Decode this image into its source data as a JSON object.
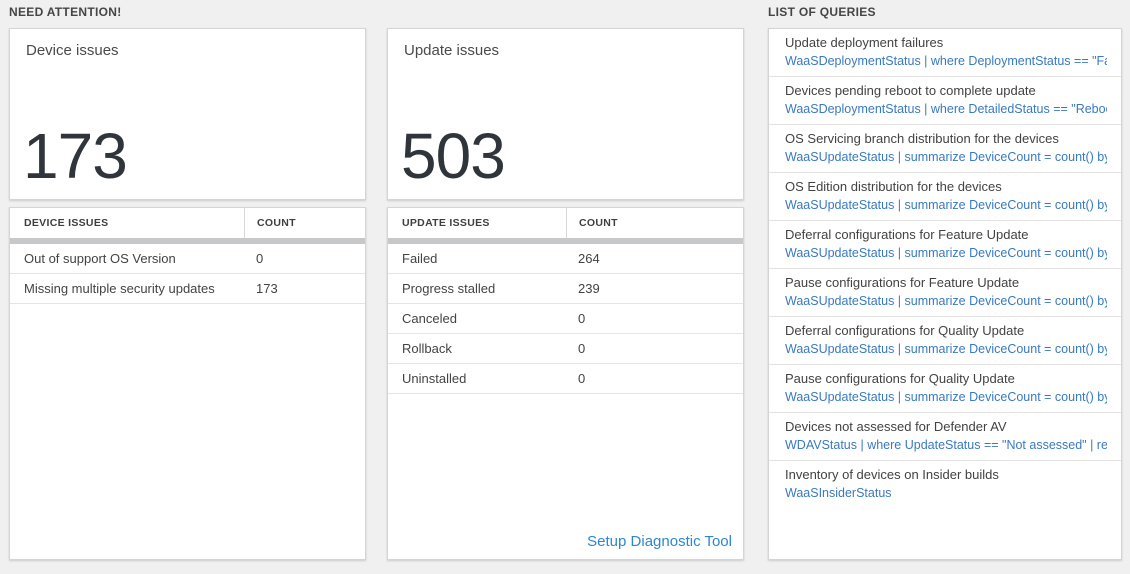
{
  "labels": {
    "need_attention": "NEED ATTENTION!",
    "list_of_queries": "LIST OF QUERIES"
  },
  "colors": {
    "query_link_blue": "#3a79c2",
    "footer_link_blue": "#2e86d1",
    "big_number_color": "#2f353b",
    "page_background": "#f0f0f1"
  },
  "cards": {
    "device": {
      "title": "Device issues",
      "value": "173"
    },
    "update": {
      "title": "Update issues",
      "value": "503"
    }
  },
  "tables": {
    "device": {
      "col1": "DEVICE ISSUES",
      "col2": "COUNT",
      "rows": [
        {
          "label": "Out of support OS Version",
          "count": "0"
        },
        {
          "label": "Missing multiple security updates",
          "count": "173"
        }
      ]
    },
    "update": {
      "col1": "UPDATE ISSUES",
      "col2": "COUNT",
      "rows": [
        {
          "label": "Failed",
          "count": "264"
        },
        {
          "label": "Progress stalled",
          "count": "239"
        },
        {
          "label": "Canceled",
          "count": "0"
        },
        {
          "label": "Rollback",
          "count": "0"
        },
        {
          "label": "Uninstalled",
          "count": "0"
        }
      ],
      "footer_link": "Setup Diagnostic Tool"
    }
  },
  "queries": [
    {
      "title": "Update deployment failures",
      "query": "WaaSDeploymentStatus | where DeploymentStatus == \"Failed\" |..."
    },
    {
      "title": "Devices pending reboot to complete update",
      "query": "WaaSDeploymentStatus | where DetailedStatus == \"Reboot pend..."
    },
    {
      "title": "OS Servicing branch distribution for the devices",
      "query": "WaaSUpdateStatus | summarize DeviceCount = count() by OSSer..."
    },
    {
      "title": "OS Edition distribution for the devices",
      "query": "WaaSUpdateStatus | summarize DeviceCount = count() by OSEdit..."
    },
    {
      "title": "Deferral configurations for Feature Update",
      "query": "WaaSUpdateStatus | summarize DeviceCount = count() by Featur..."
    },
    {
      "title": "Pause configurations for Feature Update",
      "query": "WaaSUpdateStatus | summarize DeviceCount = count() by Featur..."
    },
    {
      "title": "Deferral configurations for Quality Update",
      "query": "WaaSUpdateStatus | summarize DeviceCount = count() by Qualit..."
    },
    {
      "title": "Pause configurations for Quality Update",
      "query": "WaaSUpdateStatus | summarize DeviceCount = count() by Qualit..."
    },
    {
      "title": "Devices not assessed for Defender AV",
      "query": "WDAVStatus | where UpdateStatus == \"Not assessed\" | render ta..."
    },
    {
      "title": "Inventory of devices on Insider builds",
      "query": "WaaSInsiderStatus"
    }
  ]
}
